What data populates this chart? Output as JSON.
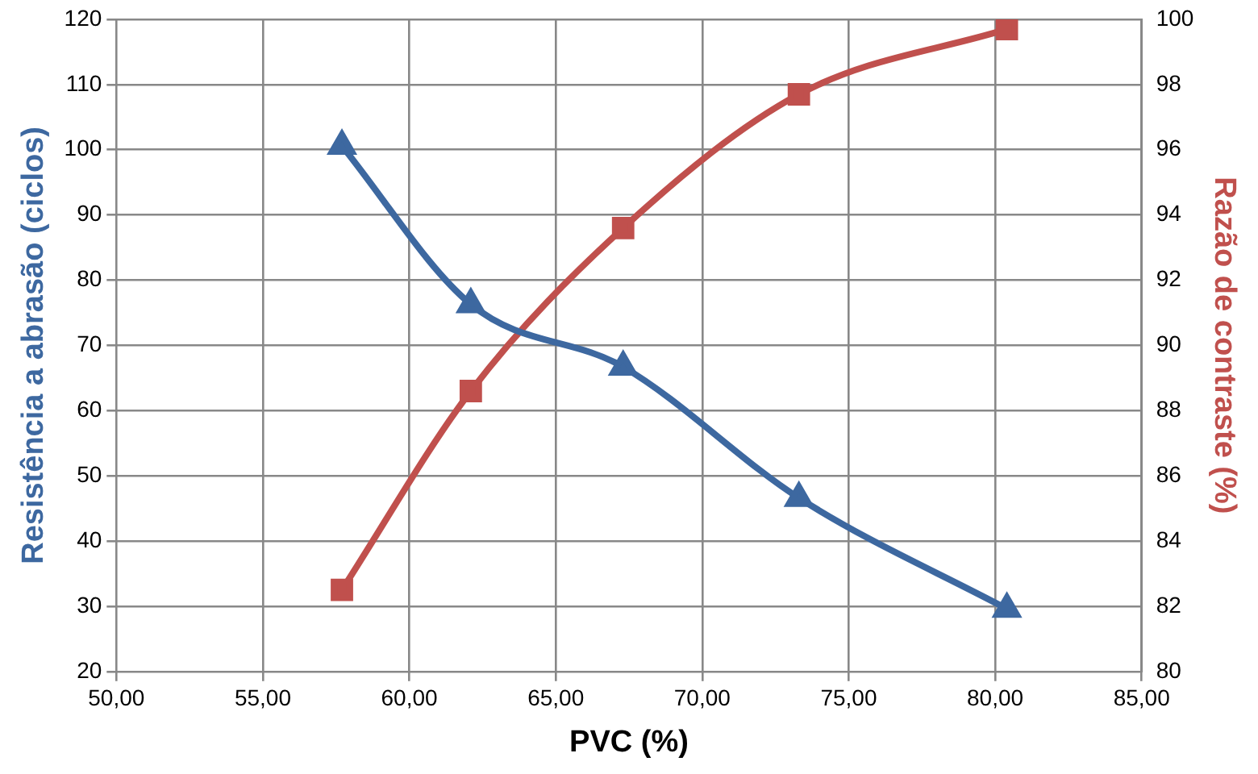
{
  "chart_data": {
    "type": "line",
    "xlabel": "PVC (%)",
    "ylabel": "Resistência a abrasão (ciclos)",
    "y2label": "Razão de contraste (%)",
    "x": [
      57.7,
      62.1,
      67.3,
      73.3,
      80.4
    ],
    "series": [
      {
        "color": "#3d68a0",
        "values": [
          100.6,
          76.3,
          66.7,
          46.6,
          29.6
        ],
        "marker": "triangle"
      },
      {
        "color": "#c0504d",
        "values": [
          82.5,
          88.6,
          93.6,
          97.7,
          99.7
        ],
        "marker": "square",
        "axis": "y2"
      }
    ],
    "xlim": [
      50,
      85
    ],
    "xticks": [
      {
        "value": 50,
        "label": "50,00"
      },
      {
        "value": 55,
        "label": "55,00"
      },
      {
        "value": 60,
        "label": "60,00"
      },
      {
        "value": 65,
        "label": "65,00"
      },
      {
        "value": 70,
        "label": "70,00"
      },
      {
        "value": 75,
        "label": "75,00"
      },
      {
        "value": 80,
        "label": "80,00"
      },
      {
        "value": 85,
        "label": "85,00"
      }
    ],
    "ylim": [
      20,
      120
    ],
    "yticks": [
      20,
      30,
      40,
      50,
      60,
      70,
      80,
      90,
      100,
      110,
      120
    ],
    "y2lim": [
      80,
      100
    ],
    "y2ticks": [
      80,
      82,
      84,
      86,
      88,
      90,
      92,
      94,
      96,
      98,
      100
    ],
    "grid": true,
    "line_style": "solid"
  }
}
